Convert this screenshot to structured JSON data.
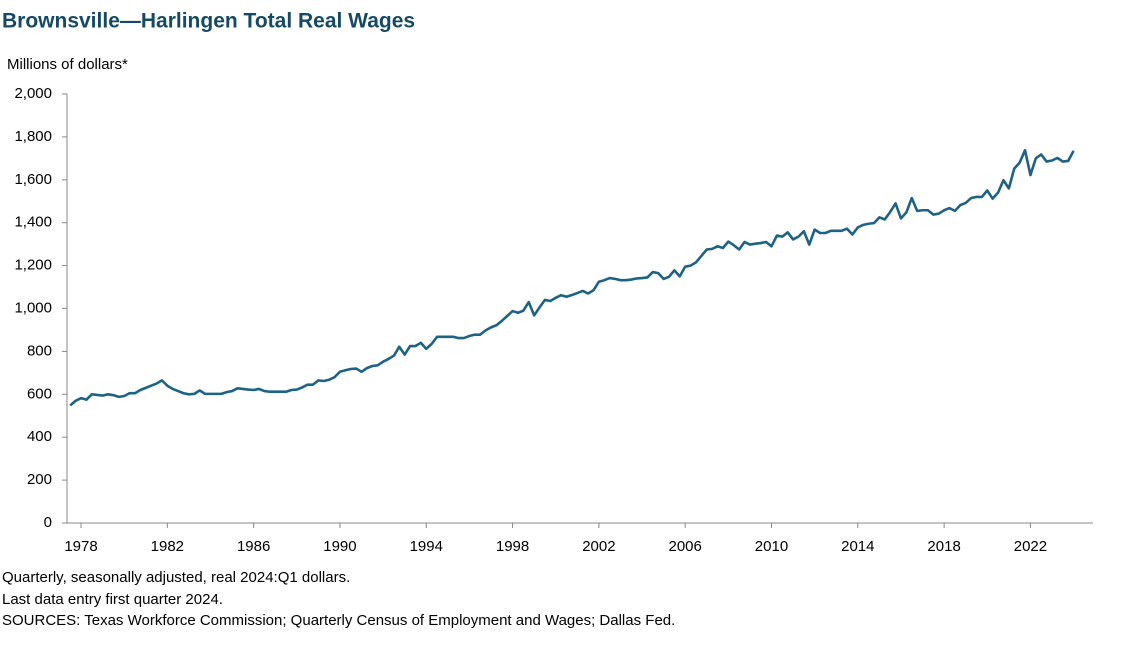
{
  "chart_data": {
    "type": "line",
    "title": "Brownsville—Harlingen Total Real Wages",
    "y_label": "Millions of dollars*",
    "notes": [
      "Quarterly, seasonally adjusted, real 2024:Q1 dollars.",
      "Last data entry first quarter 2024.",
      "SOURCES: Texas Workforce Commission; Quarterly Census of Employment and Wages; Dallas Fed."
    ],
    "x": [
      1977.5,
      1977.75,
      1978,
      1978.25,
      1978.5,
      1978.75,
      1979,
      1979.25,
      1979.5,
      1979.75,
      1980,
      1980.25,
      1980.5,
      1980.75,
      1981,
      1981.25,
      1981.5,
      1981.75,
      1982,
      1982.25,
      1982.5,
      1982.75,
      1983,
      1983.25,
      1983.5,
      1983.75,
      1984,
      1984.25,
      1984.5,
      1984.75,
      1985,
      1985.25,
      1985.5,
      1985.75,
      1986,
      1986.25,
      1986.5,
      1986.75,
      1987,
      1987.25,
      1987.5,
      1987.75,
      1988,
      1988.25,
      1988.5,
      1988.75,
      1989,
      1989.25,
      1989.5,
      1989.75,
      1990,
      1990.25,
      1990.5,
      1990.75,
      1991,
      1991.25,
      1991.5,
      1991.75,
      1992,
      1992.25,
      1992.5,
      1992.75,
      1993,
      1993.25,
      1993.5,
      1993.75,
      1994,
      1994.25,
      1994.5,
      1994.75,
      1995,
      1995.25,
      1995.5,
      1995.75,
      1996,
      1996.25,
      1996.5,
      1996.75,
      1997,
      1997.25,
      1997.5,
      1997.75,
      1998,
      1998.25,
      1998.5,
      1998.75,
      1999,
      1999.25,
      1999.5,
      1999.75,
      2000,
      2000.25,
      2000.5,
      2000.75,
      2001,
      2001.25,
      2001.5,
      2001.75,
      2002,
      2002.25,
      2002.5,
      2002.75,
      2003,
      2003.25,
      2003.5,
      2003.75,
      2004,
      2004.25,
      2004.5,
      2004.75,
      2005,
      2005.25,
      2005.5,
      2005.75,
      2006,
      2006.25,
      2006.5,
      2006.75,
      2007,
      2007.25,
      2007.5,
      2007.75,
      2008,
      2008.25,
      2008.5,
      2008.75,
      2009,
      2009.25,
      2009.5,
      2009.75,
      2010,
      2010.25,
      2010.5,
      2010.75,
      2011,
      2011.25,
      2011.5,
      2011.75,
      2012,
      2012.25,
      2012.5,
      2012.75,
      2013,
      2013.25,
      2013.5,
      2013.75,
      2014,
      2014.25,
      2014.5,
      2014.75,
      2015,
      2015.25,
      2015.5,
      2015.75,
      2016,
      2016.25,
      2016.5,
      2016.75,
      2017,
      2017.25,
      2017.5,
      2017.75,
      2018,
      2018.25,
      2018.5,
      2018.75,
      2019,
      2019.25,
      2019.5,
      2019.75,
      2020,
      2020.25,
      2020.5,
      2020.75,
      2021,
      2021.25,
      2021.5,
      2021.75,
      2022,
      2022.25,
      2022.5,
      2022.75,
      2023,
      2023.25,
      2023.5,
      2023.75,
      2024
    ],
    "series": [
      {
        "color": "#1d6385",
        "values": [
          548,
          570,
          582,
          575,
          600,
          597,
          594,
          600,
          596,
          588,
          592,
          605,
          605,
          620,
          630,
          640,
          650,
          665,
          640,
          625,
          615,
          605,
          600,
          602,
          618,
          602,
          602,
          602,
          602,
          610,
          615,
          628,
          625,
          622,
          620,
          625,
          615,
          612,
          612,
          612,
          612,
          620,
          622,
          632,
          645,
          645,
          665,
          662,
          668,
          680,
          705,
          712,
          718,
          720,
          705,
          722,
          732,
          735,
          752,
          765,
          780,
          822,
          785,
          825,
          825,
          840,
          812,
          835,
          868,
          868,
          868,
          868,
          862,
          862,
          872,
          878,
          878,
          898,
          912,
          922,
          942,
          965,
          988,
          980,
          990,
          1030,
          968,
          1005,
          1040,
          1035,
          1050,
          1062,
          1055,
          1063,
          1072,
          1082,
          1070,
          1085,
          1125,
          1132,
          1142,
          1138,
          1132,
          1132,
          1135,
          1140,
          1142,
          1145,
          1170,
          1165,
          1138,
          1148,
          1178,
          1150,
          1195,
          1200,
          1215,
          1245,
          1275,
          1278,
          1290,
          1282,
          1312,
          1295,
          1275,
          1310,
          1298,
          1302,
          1305,
          1310,
          1290,
          1340,
          1335,
          1355,
          1322,
          1335,
          1360,
          1298,
          1368,
          1352,
          1352,
          1362,
          1362,
          1362,
          1372,
          1345,
          1378,
          1390,
          1395,
          1398,
          1425,
          1415,
          1450,
          1490,
          1420,
          1448,
          1515,
          1455,
          1458,
          1458,
          1438,
          1442,
          1458,
          1468,
          1455,
          1482,
          1492,
          1515,
          1520,
          1520,
          1550,
          1512,
          1540,
          1598,
          1560,
          1652,
          1680,
          1738,
          1622,
          1700,
          1718,
          1685,
          1690,
          1702,
          1685,
          1688,
          1735
        ]
      }
    ],
    "xlim": [
      1977.35,
      2024.9
    ],
    "xticks": [
      1978,
      1982,
      1986,
      1990,
      1994,
      1998,
      2002,
      2006,
      2010,
      2014,
      2018,
      2022
    ],
    "ylim": [
      0,
      2000
    ],
    "yticks": [
      0,
      200,
      400,
      600,
      800,
      {
        "value": 1000,
        "label": "1,000"
      },
      {
        "value": 1200,
        "label": "1,200"
      },
      {
        "value": 1400,
        "label": "1,400"
      },
      {
        "value": 1600,
        "label": "1,600"
      },
      {
        "value": 1800,
        "label": "1,800"
      },
      {
        "value": 2000,
        "label": "2,000"
      }
    ],
    "grid": false
  }
}
